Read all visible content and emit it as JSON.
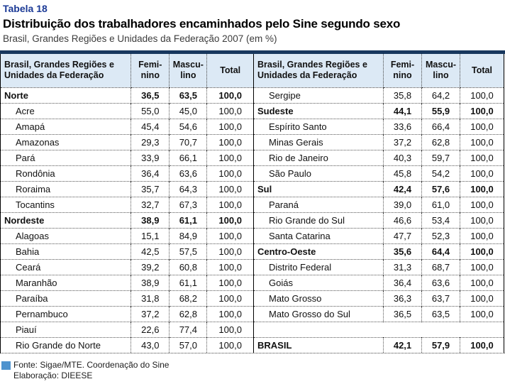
{
  "header": {
    "table_number": "Tabela 18",
    "title": "Distribuição dos trabalhadores encaminhados pelo Sine segundo sexo",
    "subtitle": "Brasil, Grandes Regiões e Unidades da Federação 2007 (em %)"
  },
  "columns": {
    "name": "Brasil, Grandes Regiões e Unidades da Federação",
    "feminino_l1": "Femi-",
    "feminino_l2": "nino",
    "masculino_l1": "Mascu-",
    "masculino_l2": "lino",
    "total": "Total"
  },
  "table": {
    "left_rows": [
      {
        "label": "Norte",
        "feminino": "36,5",
        "masculino": "63,5",
        "total": "100,0",
        "bold": true,
        "indent": false
      },
      {
        "label": "Acre",
        "feminino": "55,0",
        "masculino": "45,0",
        "total": "100,0",
        "bold": false,
        "indent": true
      },
      {
        "label": "Amapá",
        "feminino": "45,4",
        "masculino": "54,6",
        "total": "100,0",
        "bold": false,
        "indent": true
      },
      {
        "label": "Amazonas",
        "feminino": "29,3",
        "masculino": "70,7",
        "total": "100,0",
        "bold": false,
        "indent": true
      },
      {
        "label": "Pará",
        "feminino": "33,9",
        "masculino": "66,1",
        "total": "100,0",
        "bold": false,
        "indent": true
      },
      {
        "label": "Rondônia",
        "feminino": "36,4",
        "masculino": "63,6",
        "total": "100,0",
        "bold": false,
        "indent": true
      },
      {
        "label": "Roraima",
        "feminino": "35,7",
        "masculino": "64,3",
        "total": "100,0",
        "bold": false,
        "indent": true
      },
      {
        "label": "Tocantins",
        "feminino": "32,7",
        "masculino": "67,3",
        "total": "100,0",
        "bold": false,
        "indent": true
      },
      {
        "label": "Nordeste",
        "feminino": "38,9",
        "masculino": "61,1",
        "total": "100,0",
        "bold": true,
        "indent": false
      },
      {
        "label": "Alagoas",
        "feminino": "15,1",
        "masculino": "84,9",
        "total": "100,0",
        "bold": false,
        "indent": true
      },
      {
        "label": "Bahia",
        "feminino": "42,5",
        "masculino": "57,5",
        "total": "100,0",
        "bold": false,
        "indent": true
      },
      {
        "label": "Ceará",
        "feminino": "39,2",
        "masculino": "60,8",
        "total": "100,0",
        "bold": false,
        "indent": true
      },
      {
        "label": "Maranhão",
        "feminino": "38,9",
        "masculino": "61,1",
        "total": "100,0",
        "bold": false,
        "indent": true
      },
      {
        "label": "Paraíba",
        "feminino": "31,8",
        "masculino": "68,2",
        "total": "100,0",
        "bold": false,
        "indent": true
      },
      {
        "label": "Pernambuco",
        "feminino": "37,2",
        "masculino": "62,8",
        "total": "100,0",
        "bold": false,
        "indent": true
      },
      {
        "label": "Piauí",
        "feminino": "22,6",
        "masculino": "77,4",
        "total": "100,0",
        "bold": false,
        "indent": true
      },
      {
        "label": "Rio Grande do Norte",
        "feminino": "43,0",
        "masculino": "57,0",
        "total": "100,0",
        "bold": false,
        "indent": true
      }
    ],
    "right_rows": [
      {
        "label": "Sergipe",
        "feminino": "35,8",
        "masculino": "64,2",
        "total": "100,0",
        "bold": false,
        "indent": true
      },
      {
        "label": "Sudeste",
        "feminino": "44,1",
        "masculino": "55,9",
        "total": "100,0",
        "bold": true,
        "indent": false
      },
      {
        "label": "Espírito Santo",
        "feminino": "33,6",
        "masculino": "66,4",
        "total": "100,0",
        "bold": false,
        "indent": true
      },
      {
        "label": "Minas Gerais",
        "feminino": "37,2",
        "masculino": "62,8",
        "total": "100,0",
        "bold": false,
        "indent": true
      },
      {
        "label": "Rio de Janeiro",
        "feminino": "40,3",
        "masculino": "59,7",
        "total": "100,0",
        "bold": false,
        "indent": true
      },
      {
        "label": "São Paulo",
        "feminino": "45,8",
        "masculino": "54,2",
        "total": "100,0",
        "bold": false,
        "indent": true
      },
      {
        "label": "Sul",
        "feminino": "42,4",
        "masculino": "57,6",
        "total": "100,0",
        "bold": true,
        "indent": false
      },
      {
        "label": "Paraná",
        "feminino": "39,0",
        "masculino": "61,0",
        "total": "100,0",
        "bold": false,
        "indent": true
      },
      {
        "label": "Rio Grande do Sul",
        "feminino": "46,6",
        "masculino": "53,4",
        "total": "100,0",
        "bold": false,
        "indent": true
      },
      {
        "label": "Santa Catarina",
        "feminino": "47,7",
        "masculino": "52,3",
        "total": "100,0",
        "bold": false,
        "indent": true
      },
      {
        "label": "Centro-Oeste",
        "feminino": "35,6",
        "masculino": "64,4",
        "total": "100,0",
        "bold": true,
        "indent": false
      },
      {
        "label": "Distrito Federal",
        "feminino": "31,3",
        "masculino": "68,7",
        "total": "100,0",
        "bold": false,
        "indent": true
      },
      {
        "label": "Goiás",
        "feminino": "36,4",
        "masculino": "63,6",
        "total": "100,0",
        "bold": false,
        "indent": true
      },
      {
        "label": "Mato Grosso",
        "feminino": "36,3",
        "masculino": "63,7",
        "total": "100,0",
        "bold": false,
        "indent": true
      },
      {
        "label": "Mato Grosso do Sul",
        "feminino": "36,5",
        "masculino": "63,5",
        "total": "100,0",
        "bold": false,
        "indent": true
      },
      {
        "label": "",
        "feminino": "",
        "masculino": "",
        "total": "",
        "bold": false,
        "indent": false,
        "empty": true
      },
      {
        "label": "BRASIL",
        "feminino": "42,1",
        "masculino": "57,9",
        "total": "100,0",
        "bold": true,
        "indent": false
      }
    ]
  },
  "footer": {
    "source": "Fonte: Sigae/MTE. Coordenação do Sine",
    "elaboration": "Elaboração: DIEESE"
  },
  "colors": {
    "accent_navy_bar": "#17375e",
    "table_number_blue": "#1b3a96",
    "header_cell_bg": "#dce9f5",
    "legend_square_blue": "#4f93ce"
  }
}
